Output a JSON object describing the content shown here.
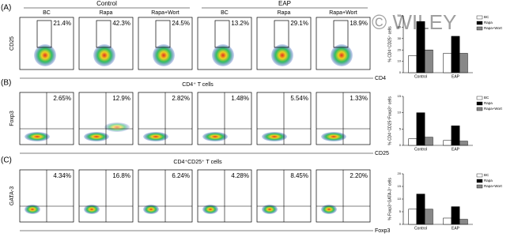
{
  "watermark": "© WILEY",
  "groups": [
    {
      "name": "Control",
      "subgroups": [
        "BC",
        "Rapa",
        "Rapa+Wort"
      ]
    },
    {
      "name": "EAP",
      "subgroups": [
        "BC",
        "Rapa",
        "Rapa+Wort"
      ]
    }
  ],
  "flow": {
    "rows": [
      {
        "panel": "(A)",
        "y_label": "CD25",
        "x_label": "CD4",
        "percents": [
          "21.4%",
          "42.3%",
          "24.5%",
          "13.2%",
          "29.1%",
          "18.9%"
        ]
      },
      {
        "panel": "(B)",
        "title": "CD4⁺ T cells",
        "y_label": "Foxp3",
        "x_label": "CD25",
        "percents": [
          "2.65%",
          "12.9%",
          "2.82%",
          "1.48%",
          "5.54%",
          "1.33%"
        ]
      },
      {
        "panel": "(C)",
        "title": "CD4⁺CD25⁺ T cells",
        "y_label": "GATA-3",
        "x_label": "Foxp3",
        "percents": [
          "4.34%",
          "16.8%",
          "6.24%",
          "4.28%",
          "8.45%",
          "2.20%"
        ]
      }
    ]
  },
  "chart_data": [
    {
      "type": "bar",
      "y_label": "% CD4⁺CD25⁺ cells",
      "categories": [
        "Control",
        "EAP"
      ],
      "ylim": [
        0,
        50
      ],
      "yticks": [
        0,
        10,
        20,
        30,
        40,
        50
      ],
      "series": [
        {
          "name": "BC",
          "color": "#ffffff",
          "values": [
            15,
            17
          ]
        },
        {
          "name": "Rapa",
          "color": "#000000",
          "values": [
            45,
            32
          ]
        },
        {
          "name": "Rapa+Wort",
          "color": "#888888",
          "values": [
            20,
            17
          ]
        }
      ]
    },
    {
      "type": "bar",
      "y_label": "% CD4⁺CD25⁺Foxp3⁺ cells",
      "categories": [
        "Control",
        "EAP"
      ],
      "ylim": [
        0,
        15
      ],
      "yticks": [
        0,
        5,
        10,
        15
      ],
      "series": [
        {
          "name": "BC",
          "color": "#ffffff",
          "values": [
            2,
            1.5
          ]
        },
        {
          "name": "Rapa",
          "color": "#000000",
          "values": [
            10,
            6
          ]
        },
        {
          "name": "Rapa+Wort",
          "color": "#888888",
          "values": [
            2.5,
            1.3
          ]
        }
      ]
    },
    {
      "type": "bar",
      "y_label": "% Foxp3⁺GATA-3⁺ cells",
      "categories": [
        "Control",
        "EAP"
      ],
      "ylim": [
        0,
        20
      ],
      "yticks": [
        0,
        5,
        10,
        15,
        20
      ],
      "series": [
        {
          "name": "BC",
          "color": "#ffffff",
          "values": [
            6,
            2.5
          ]
        },
        {
          "name": "Rapa",
          "color": "#000000",
          "values": [
            12,
            7
          ]
        },
        {
          "name": "Rapa+Wort",
          "color": "#888888",
          "values": [
            6,
            2
          ]
        }
      ]
    }
  ]
}
